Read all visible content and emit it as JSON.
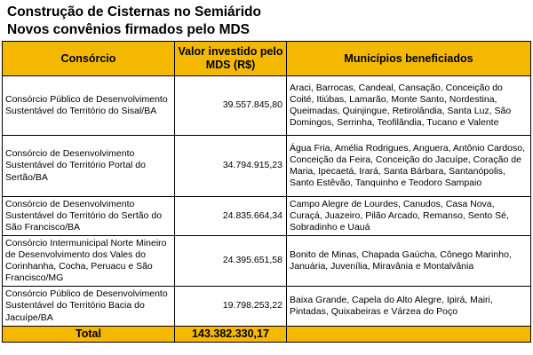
{
  "title": {
    "line1": "Construção de Cisternas no Semiárido",
    "line2": "Novos convênios firmados pelo MDS"
  },
  "table": {
    "headers": {
      "consorcio": "Consórcio",
      "valor": "Valor investido pelo MDS (R$)",
      "municipios": "Municípios beneficiados"
    },
    "rows": [
      {
        "consorcio": "Consórcio Público de Desenvolvimento Sustentável do Território do Sisal/BA",
        "valor": "39.557.845,80",
        "municipios": "Araci, Barrocas, Candeal, Cansação, Conceição do Coité, Itiúbas, Lamarão, Monte Santo, Nordestina, Queimadas, Quinjingue, Retirolândia, Santa Luz, São Domingos, Serrinha, Teofilândia, Tucano e Valente"
      },
      {
        "consorcio": "Consórcio de Desenvolvimento Sustentável do Território Portal do Sertão/BA",
        "valor": "34.794.915,23",
        "municipios": "Água Fria, Amélia Rodrigues, Anguera, Antônio Cardoso, Conceição da Feira, Conceição do Jacuípe, Coração de Maria, Ipecaetá, Irará, Santa Bárbara, Santanópolis, Santo Estêvão, Tanquinho e Teodoro Sampaio"
      },
      {
        "consorcio": "Consórcio de Desenvolvimento Sustentável do Território do Sertão do São Francisco/BA",
        "valor": "24.835.664,34",
        "municipios": "Campo Alegre de Lourdes, Canudos, Casa Nova, Curaçá, Juazeiro, Pilão Arcado, Remanso, Sento Sé, Sobradinho e Uauá"
      },
      {
        "consorcio": "Consórcio Intermunicipal Norte Mineiro de Desenvolvimento dos Vales do Corinhanha, Cocha, Peruacu e São Francisco/MG",
        "valor": "24.395.651,58",
        "municipios": "Bonito de Minas, Chapada Gaúcha, Cônego Marinho, Januária, Juvenília, Miravânia e Montalvânia"
      },
      {
        "consorcio": "Consórcio Público de Desenvolvimento Sustentável do Território Bacia do Jacuípe/BA",
        "valor": "19.798.253,22",
        "municipios": "Baixa Grande, Capela do Alto Alegre, Ipirá, Mairi, Pintadas, Quixabeiras e Várzea do Poço"
      }
    ],
    "total": {
      "label": "Total",
      "valor": "143.382.330,17"
    }
  },
  "colors": {
    "header_bg": "#f5b800",
    "border": "#000000"
  }
}
